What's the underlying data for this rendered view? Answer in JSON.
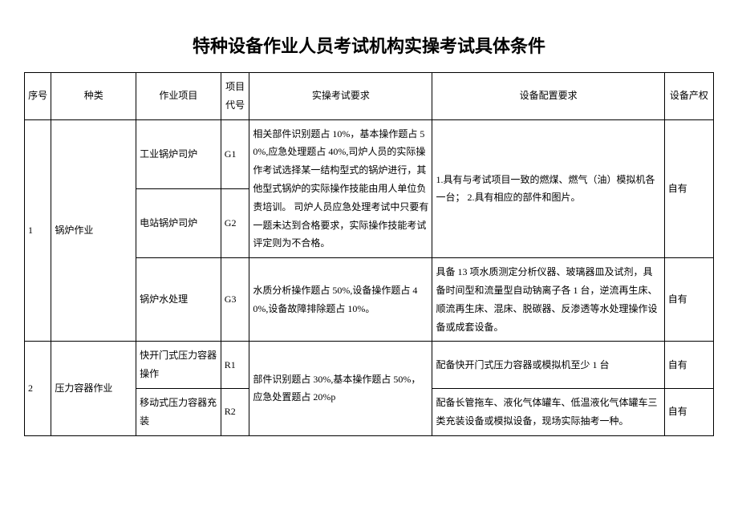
{
  "title": "特种设备作业人员考试机构实操考试具体条件",
  "columns": {
    "seq": "序号",
    "category": "种类",
    "job": "作业项目",
    "code": "项目代号",
    "exam": "实操考试要求",
    "equip": "设备配置要求",
    "own": "设备产权"
  },
  "rows": {
    "r1": {
      "seq": "1",
      "category": "锅炉作业",
      "job1": "工业锅炉司炉",
      "code1": "G1",
      "job2": "电站锅炉司炉",
      "code2": "G2",
      "exam12": "相关部件识别题占 10%，基本操作题占 50%,应急处理题占 40%,司炉人员的实际操作考试选择某一结构型式的锅炉进行，其他型式锅炉的实际操作技能由用人单位负责培训。\n司炉人员应急处理考试中只要有一题未达到合格要求，实际操作技能考试评定则为不合格。",
      "equip12": "1.具有与考试项目一致的燃煤、燃气（油）模拟机各一台；\n2.具有相应的部件和图片。",
      "own12": "自有",
      "job3": "锅炉水处理",
      "code3": "G3",
      "exam3": "水质分析操作题占 50%,设备操作题占 40%,设备故障排除题占 10%。",
      "equip3": "具备 13 项水质测定分析仪器、玻璃器皿及试剂，具备时间型和流量型自动钠离子各 1 台，逆流再生床、顺流再生床、混床、脱碳器、反渗透等水处理操作设备或成套设备。",
      "own3": "自有"
    },
    "r2": {
      "seq": "2",
      "category": "压力容器作业",
      "job1": "快开门式压力容器操作",
      "code1": "R1",
      "exam12": "部件识别题占 30%,基本操作题占 50%，应急处置题占 20%p",
      "equip1": "配备快开门式压力容器或模拟机至少 1 台",
      "own1": "自有",
      "job2": "移动式压力容器充装",
      "code2": "R2",
      "equip2": "配备长管拖车、液化气体罐车、低温液化气体罐车三类充装设备或模拟设备，现场实际抽考一种。",
      "own2": "自有"
    }
  }
}
